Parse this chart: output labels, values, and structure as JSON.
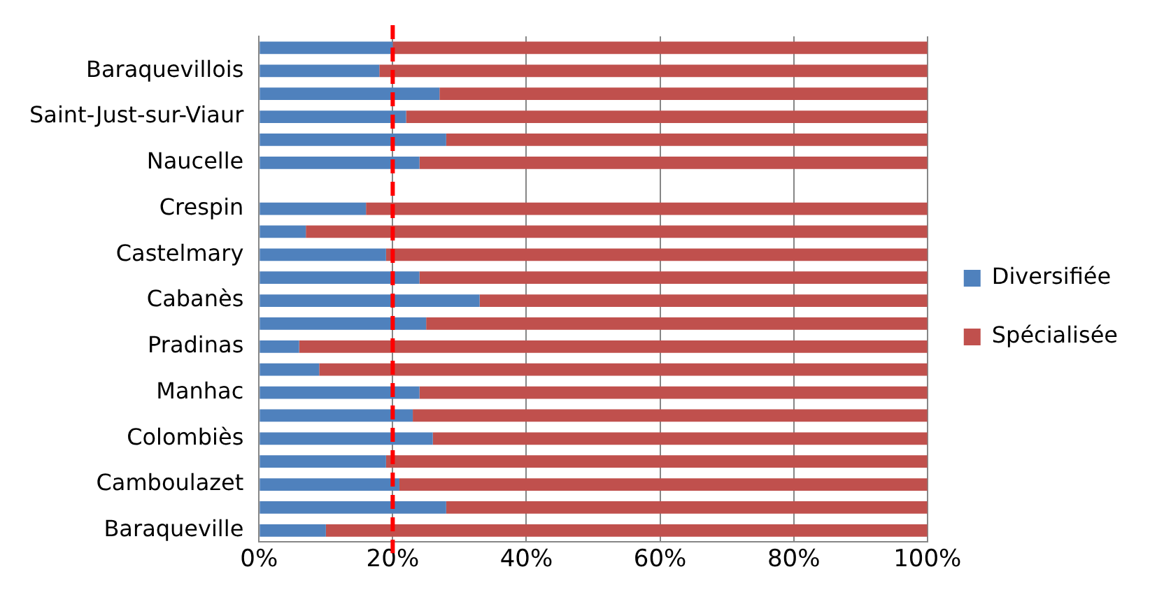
{
  "chart_data": {
    "type": "bar",
    "orientation": "horizontal",
    "stacked": true,
    "categories": [
      null,
      "Baraquevillois",
      null,
      "Saint-Just-sur-Viaur",
      null,
      "Naucelle",
      null,
      "Crespin",
      null,
      "Castelmary",
      null,
      "Cabanès",
      null,
      "Pradinas",
      null,
      "Manhac",
      null,
      "Colombiès",
      null,
      "Camboulazet",
      null,
      "Baraqueville"
    ],
    "series": [
      {
        "name": "Diversifiée",
        "color": "#4f81bd",
        "values": [
          20,
          18,
          27,
          22,
          28,
          24,
          null,
          16,
          7,
          19,
          24,
          33,
          25,
          6,
          9,
          24,
          23,
          26,
          19,
          21,
          28,
          10
        ]
      },
      {
        "name": "Spécialisée",
        "color": "#c0504d",
        "values": [
          80,
          82,
          73,
          78,
          72,
          76,
          null,
          84,
          93,
          81,
          76,
          67,
          75,
          94,
          91,
          76,
          77,
          74,
          81,
          79,
          72,
          90
        ]
      }
    ],
    "xlim": [
      0,
      100
    ],
    "xticks": [
      {
        "value": 0,
        "label": "0%"
      },
      {
        "value": 20,
        "label": "20%"
      },
      {
        "value": 40,
        "label": "40%"
      },
      {
        "value": 60,
        "label": "60%"
      },
      {
        "value": 80,
        "label": "80%"
      },
      {
        "value": 100,
        "label": "100%"
      }
    ],
    "grid": "x",
    "legend": "right",
    "ref_lines": [
      {
        "axis": "x",
        "value": 20,
        "color": "#ff0000",
        "line_style": "dashed"
      }
    ]
  }
}
